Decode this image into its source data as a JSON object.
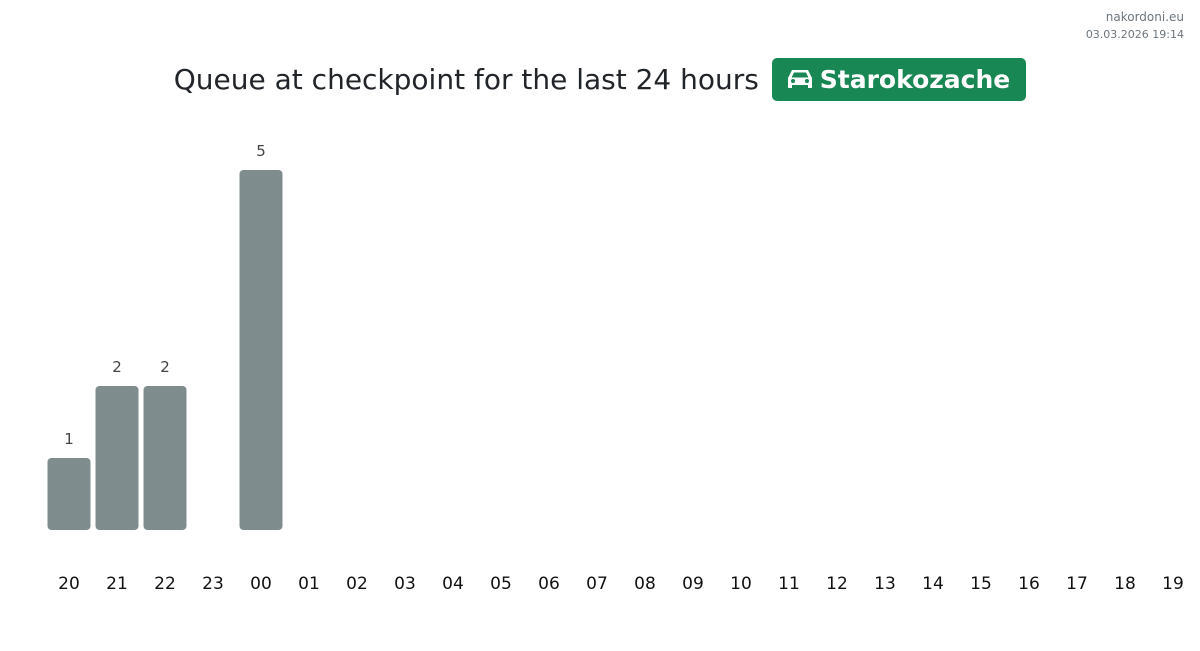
{
  "brand": {
    "site": "nakordoni.eu",
    "timestamp": "03.03.2026 19:14"
  },
  "header": {
    "title": "Queue at checkpoint for the last 24 hours",
    "checkpoint": "Starokozache",
    "checkpoint_icon": "car-icon",
    "badge_color": "#198754"
  },
  "chart_data": {
    "type": "bar",
    "categories": [
      "20",
      "21",
      "22",
      "23",
      "00",
      "01",
      "02",
      "03",
      "04",
      "05",
      "06",
      "07",
      "08",
      "09",
      "10",
      "11",
      "12",
      "13",
      "14",
      "15",
      "16",
      "17",
      "18",
      "19"
    ],
    "values": [
      1,
      2,
      2,
      0,
      5,
      0,
      0,
      0,
      0,
      0,
      0,
      0,
      0,
      0,
      0,
      0,
      0,
      0,
      0,
      0,
      0,
      0,
      0,
      0
    ],
    "bar_color": "#7f8c8d",
    "grid": false,
    "data_labels": true
  }
}
